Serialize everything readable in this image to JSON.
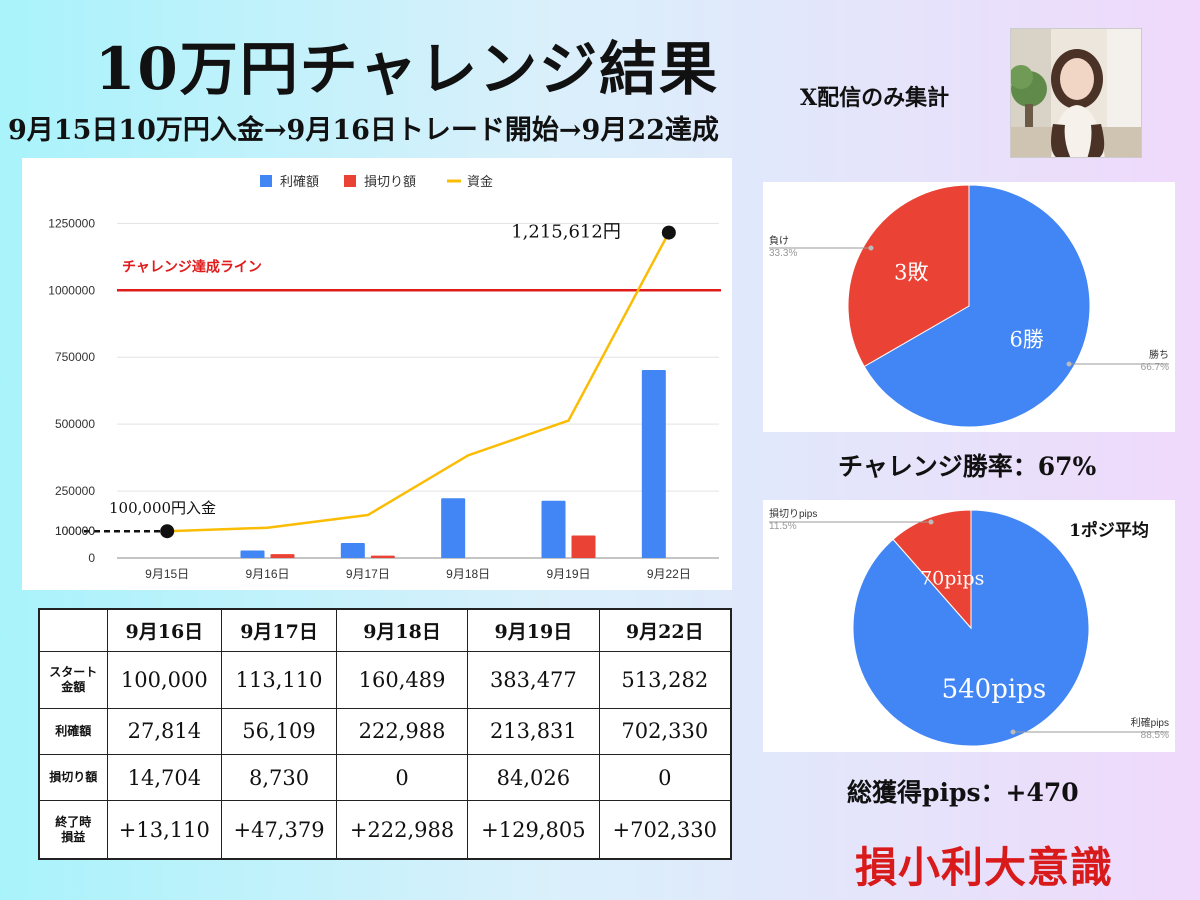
{
  "header": {
    "title": "10万円チャレンジ結果",
    "subtitle": "9月15日10万円入金→9月16日トレード開始→9月22達成",
    "x_only_note": "X配信のみ集計"
  },
  "chart_data": [
    {
      "type": "bar",
      "categories": [
        "9月15日",
        "9月16日",
        "9月17日",
        "9月18日",
        "9月19日",
        "9月22日"
      ],
      "series": [
        {
          "name": "利確額",
          "kind": "bar",
          "color": "#4285f4",
          "values": [
            0,
            27814,
            56109,
            222988,
            213831,
            702330
          ]
        },
        {
          "name": "損切り額",
          "kind": "bar",
          "color": "#ea4335",
          "values": [
            0,
            14704,
            8730,
            0,
            84026,
            0
          ]
        },
        {
          "name": "資金",
          "kind": "line",
          "color": "#fbbc04",
          "values": [
            100000,
            113110,
            160489,
            383477,
            513282,
            1215612
          ]
        }
      ],
      "ylim": [
        0,
        1300000
      ],
      "yticks": [
        "1250000",
        "1000000",
        "750000",
        "500000",
        "250000",
        "100000",
        "0"
      ],
      "ytick_values": [
        1250000,
        1000000,
        750000,
        500000,
        250000,
        100000,
        0
      ],
      "reference_line": {
        "value": 1000000,
        "label": "チャレンジ達成ライン",
        "color": "#e01b1b"
      },
      "annotations": [
        {
          "label": "100,000円入金",
          "category": "9月15日",
          "value": 100000
        },
        {
          "label": "1,215,612円",
          "category": "9月22日",
          "value": 1215612
        }
      ],
      "legend_position": "top"
    },
    {
      "type": "pie",
      "slices": [
        {
          "label": "負け",
          "percent_label": "33.3%",
          "inner_label": "3敗",
          "value": 3,
          "color": "#ea4335"
        },
        {
          "label": "勝ち",
          "percent_label": "66.7%",
          "inner_label": "6勝",
          "value": 6,
          "color": "#4285f4"
        }
      ],
      "caption": "チャレンジ勝率：67%"
    },
    {
      "type": "pie",
      "slices": [
        {
          "label": "損切りpips",
          "percent_label": "11.5%",
          "inner_label": "70pips",
          "value": 70,
          "color": "#ea4335"
        },
        {
          "label": "利確pips",
          "percent_label": "88.5%",
          "inner_label": "540pips",
          "value": 540,
          "color": "#4285f4"
        }
      ],
      "note": "1ポジ平均",
      "caption": "総獲得pips：+470"
    }
  ],
  "table": {
    "columns": [
      "9月16日",
      "9月17日",
      "9月18日",
      "9月19日",
      "9月22日"
    ],
    "rows": [
      {
        "label_lines": [
          "スタート",
          "金額"
        ],
        "values": [
          "100,000",
          "113,110",
          "160,489",
          "383,477",
          "513,282"
        ]
      },
      {
        "label_lines": [
          "利確額"
        ],
        "values": [
          "27,814",
          "56,109",
          "222,988",
          "213,831",
          "702,330"
        ]
      },
      {
        "label_lines": [
          "損切り額"
        ],
        "values": [
          "14,704",
          "8,730",
          "0",
          "84,026",
          "0"
        ]
      },
      {
        "label_lines": [
          "終了時",
          "損益"
        ],
        "values": [
          "+13,110",
          "+47,379",
          "+222,988",
          "+129,805",
          "+702,330"
        ]
      }
    ]
  },
  "slogan": "損小利大意識"
}
